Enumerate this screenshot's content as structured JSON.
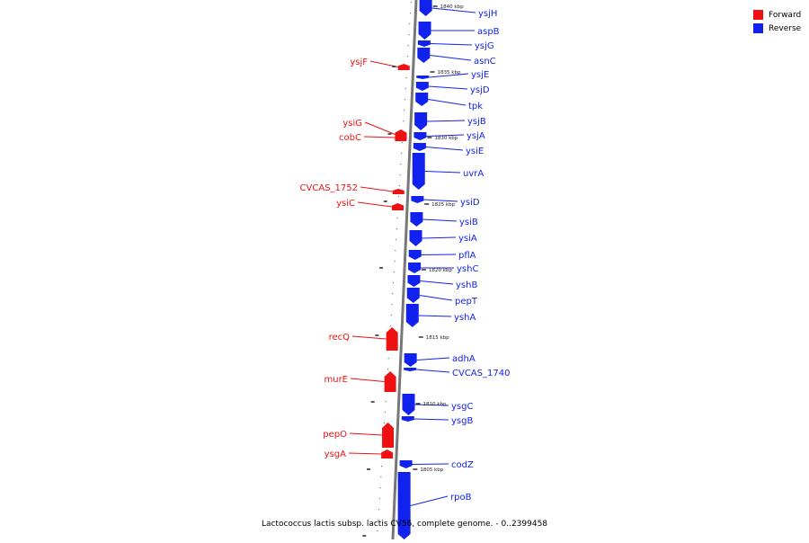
{
  "legend": {
    "forward_label": "Forward",
    "reverse_label": "Reverse",
    "forward_color": "#ee1111",
    "reverse_color": "#1122ee"
  },
  "caption": "Lactococcus lactis subsp. lactis CV56, complete genome. - 0..2399458",
  "scale_labels": [
    "1840 kbp",
    "1835 kbp",
    "1830 kbp",
    "1825 kbp",
    "1820 kbp",
    "1815 kbp",
    "1810 kbp",
    "1805 kbp"
  ],
  "genes": [
    {
      "name": "ysjH",
      "strand": "reverse"
    },
    {
      "name": "aspB",
      "strand": "reverse"
    },
    {
      "name": "ysjG",
      "strand": "reverse"
    },
    {
      "name": "asnC",
      "strand": "reverse"
    },
    {
      "name": "ysjF",
      "strand": "forward"
    },
    {
      "name": "ysjE",
      "strand": "reverse"
    },
    {
      "name": "ysjD",
      "strand": "reverse"
    },
    {
      "name": "tpk",
      "strand": "reverse"
    },
    {
      "name": "ysjB",
      "strand": "reverse"
    },
    {
      "name": "ysiG",
      "strand": "forward"
    },
    {
      "name": "ysjA",
      "strand": "reverse"
    },
    {
      "name": "cobC",
      "strand": "forward"
    },
    {
      "name": "ysiE",
      "strand": "reverse"
    },
    {
      "name": "uvrA",
      "strand": "reverse"
    },
    {
      "name": "CVCAS_1752",
      "strand": "forward"
    },
    {
      "name": "ysiD",
      "strand": "reverse"
    },
    {
      "name": "ysiC",
      "strand": "forward"
    },
    {
      "name": "ysiB",
      "strand": "reverse"
    },
    {
      "name": "ysiA",
      "strand": "reverse"
    },
    {
      "name": "pflA",
      "strand": "reverse"
    },
    {
      "name": "yshC",
      "strand": "reverse"
    },
    {
      "name": "yshB",
      "strand": "reverse"
    },
    {
      "name": "pepT",
      "strand": "reverse"
    },
    {
      "name": "yshA",
      "strand": "reverse"
    },
    {
      "name": "recQ",
      "strand": "forward"
    },
    {
      "name": "adhA",
      "strand": "reverse"
    },
    {
      "name": "CVCAS_1740",
      "strand": "reverse"
    },
    {
      "name": "murE",
      "strand": "forward"
    },
    {
      "name": "ysgC",
      "strand": "reverse"
    },
    {
      "name": "ysgB",
      "strand": "reverse"
    },
    {
      "name": "pepO",
      "strand": "forward"
    },
    {
      "name": "ysgA",
      "strand": "forward"
    },
    {
      "name": "codZ",
      "strand": "reverse"
    },
    {
      "name": "rpoB",
      "strand": "reverse"
    }
  ]
}
